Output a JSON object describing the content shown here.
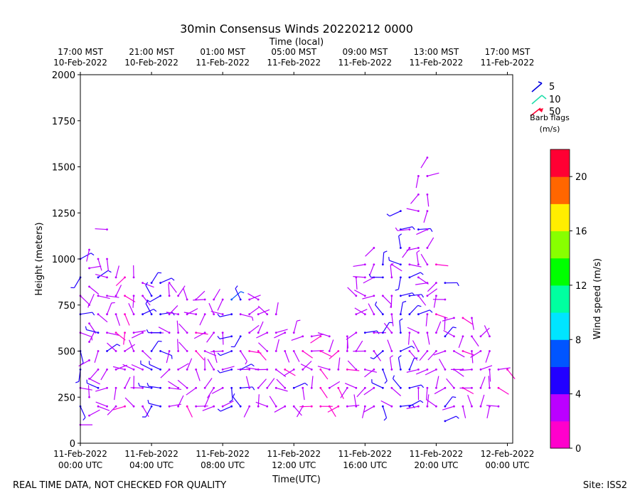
{
  "chart_data": {
    "type": "wind-barb",
    "title": "30min Consensus Winds 20220212 0000",
    "top_axis_label": "Time (local)",
    "top_ticks": [
      {
        "line1": "17:00 MST",
        "line2": "10-Feb-2022"
      },
      {
        "line1": "21:00 MST",
        "line2": "10-Feb-2022"
      },
      {
        "line1": "01:00 MST",
        "line2": "11-Feb-2022"
      },
      {
        "line1": "05:00 MST",
        "line2": "11-Feb-2022"
      },
      {
        "line1": "09:00 MST",
        "line2": "11-Feb-2022"
      },
      {
        "line1": "13:00 MST",
        "line2": "11-Feb-2022"
      },
      {
        "line1": "17:00 MST",
        "line2": "11-Feb-2022"
      }
    ],
    "xlabel": "Time(UTC)",
    "x_ticks": [
      {
        "line1": "11-Feb-2022",
        "line2": "00:00 UTC"
      },
      {
        "line1": "11-Feb-2022",
        "line2": "04:00 UTC"
      },
      {
        "line1": "11-Feb-2022",
        "line2": "08:00 UTC"
      },
      {
        "line1": "11-Feb-2022",
        "line2": "12:00 UTC"
      },
      {
        "line1": "11-Feb-2022",
        "line2": "16:00 UTC"
      },
      {
        "line1": "11-Feb-2022",
        "line2": "20:00 UTC"
      },
      {
        "line1": "12-Feb-2022",
        "line2": "00:00 UTC"
      }
    ],
    "x_tick_hours": [
      0,
      4,
      8,
      12,
      16,
      20,
      24
    ],
    "xlim_hours_utc": [
      0,
      24.3
    ],
    "ylabel": "Height (meters)",
    "ylim": [
      0,
      2000
    ],
    "y_ticks": [
      0,
      250,
      500,
      750,
      1000,
      1250,
      1500,
      1750,
      2000
    ],
    "legend": {
      "position": "top-right",
      "items": [
        {
          "value": "5",
          "color": "#0000dd"
        },
        {
          "value": "10",
          "color": "#22ddaa"
        },
        {
          "value": "50",
          "color": "#ff0033"
        }
      ],
      "title_line1": "Barb flags",
      "title_line2": "(m/s)"
    },
    "colorbar": {
      "label": "Wind speed (m/s)",
      "range": [
        0,
        22
      ],
      "ticks": [
        0,
        4,
        8,
        12,
        16,
        20
      ],
      "colors": [
        "#ff00cc",
        "#bb00ff",
        "#2200ff",
        "#0055ff",
        "#00e5ff",
        "#00ffa0",
        "#00ff00",
        "#88ff00",
        "#ffee00",
        "#ff6600",
        "#ff0033"
      ]
    },
    "barb_columns": [
      {
        "t": 0.0,
        "heights": [
          100,
          200,
          300,
          400,
          500,
          600,
          700,
          800,
          900,
          1000
        ],
        "speed": 4.5
      },
      {
        "t": 0.5,
        "heights": [
          150,
          250,
          350,
          450,
          550,
          650,
          750,
          850,
          950,
          1050
        ],
        "speed": 3.0
      },
      {
        "t": 1.0,
        "heights": [
          200,
          300,
          400,
          500,
          600,
          700,
          800,
          900,
          1000
        ],
        "speed": 4.0
      },
      {
        "t": 1.5,
        "heights": [
          200,
          300,
          400,
          500,
          600,
          700,
          800,
          900,
          1000,
          1160
        ],
        "speed": 3.5
      },
      {
        "t": 2.0,
        "heights": [
          200,
          300,
          400,
          500,
          600,
          700,
          800,
          900
        ],
        "speed": 2.5
      },
      {
        "t": 2.5,
        "heights": [
          200,
          300,
          400,
          500,
          600,
          700,
          800,
          900
        ],
        "speed": 2.0
      },
      {
        "t": 3.0,
        "heights": [
          200,
          300,
          400,
          500,
          600,
          700,
          800,
          900
        ],
        "speed": 2.5
      },
      {
        "t": 3.5,
        "heights": [
          200,
          300,
          400,
          500,
          600,
          700,
          800,
          870
        ],
        "speed": 3.5
      },
      {
        "t": 4.0,
        "heights": [
          200,
          300,
          400,
          500,
          600,
          700,
          800,
          870
        ],
        "speed": 4.5
      },
      {
        "t": 4.5,
        "heights": [
          200,
          300,
          400,
          500,
          600,
          700,
          800,
          870
        ],
        "speed": 5.0
      },
      {
        "t": 5.0,
        "heights": [
          200,
          300,
          400,
          500,
          600,
          700,
          800,
          870
        ],
        "speed": 3.0
      },
      {
        "t": 5.5,
        "heights": [
          200,
          300,
          400,
          500,
          600,
          700,
          800
        ],
        "speed": 2.5
      },
      {
        "t": 6.0,
        "heights": [
          200,
          300,
          400,
          500,
          600,
          700,
          780
        ],
        "speed": 2.0
      },
      {
        "t": 6.5,
        "heights": [
          200,
          300,
          400,
          500,
          600,
          700,
          780
        ],
        "speed": 2.5
      },
      {
        "t": 7.0,
        "heights": [
          200,
          300,
          400,
          500,
          600,
          700,
          780
        ],
        "speed": 3.0
      },
      {
        "t": 7.5,
        "heights": [
          200,
          300,
          400,
          500,
          600,
          700,
          780
        ],
        "speed": 2.5
      },
      {
        "t": 8.0,
        "heights": [
          200,
          300,
          400,
          500,
          600,
          700,
          780
        ],
        "speed": 3.0
      },
      {
        "t": 8.5,
        "heights": [
          200,
          300,
          400,
          500,
          580,
          700,
          780
        ],
        "speed": 5.5
      },
      {
        "t": 9.0,
        "heights": [
          200,
          300,
          400,
          500,
          580,
          700,
          780
        ],
        "speed": 4.5
      },
      {
        "t": 9.5,
        "heights": [
          200,
          300,
          400,
          500,
          600,
          700,
          780
        ],
        "speed": 2.5
      },
      {
        "t": 10.0,
        "heights": [
          200,
          300,
          400,
          500,
          600,
          700,
          780
        ],
        "speed": 2.0
      },
      {
        "t": 10.5,
        "heights": [
          200,
          300,
          400,
          500,
          600,
          700
        ],
        "speed": 2.5
      },
      {
        "t": 11.0,
        "heights": [
          200,
          300,
          400,
          500,
          600,
          700
        ],
        "speed": 3.0
      },
      {
        "t": 11.5,
        "heights": [
          200,
          300,
          400,
          500,
          600
        ],
        "speed": 2.5
      },
      {
        "t": 12.0,
        "heights": [
          200,
          300,
          400,
          500,
          600
        ],
        "speed": 3.5
      },
      {
        "t": 12.5,
        "heights": [
          200,
          300,
          400,
          500,
          580
        ],
        "speed": 2.5
      },
      {
        "t": 13.0,
        "heights": [
          200,
          300,
          400,
          500,
          580
        ],
        "speed": 2.0
      },
      {
        "t": 13.5,
        "heights": [
          200,
          300,
          400,
          500,
          580
        ],
        "speed": 2.0
      },
      {
        "t": 14.0,
        "heights": [
          200,
          300,
          400,
          500,
          580
        ],
        "speed": 2.5
      },
      {
        "t": 14.5,
        "heights": [
          200,
          300,
          400,
          500
        ],
        "speed": 2.0
      },
      {
        "t": 15.0,
        "heights": [
          200,
          300,
          400,
          500,
          580
        ],
        "speed": 2.5
      },
      {
        "t": 15.5,
        "heights": [
          200,
          300,
          400,
          500,
          600,
          700,
          800,
          900
        ],
        "speed": 2.5
      },
      {
        "t": 16.0,
        "heights": [
          200,
          300,
          400,
          500,
          600,
          700,
          800,
          900,
          970
        ],
        "speed": 3.5
      },
      {
        "t": 16.5,
        "heights": [
          200,
          300,
          400,
          500,
          600,
          700,
          800,
          900,
          970,
          1060
        ],
        "speed": 3.0
      },
      {
        "t": 17.0,
        "heights": [
          200,
          300,
          400,
          500,
          600,
          700,
          800,
          900,
          970
        ],
        "speed": 4.5
      },
      {
        "t": 17.5,
        "heights": [
          200,
          300,
          400,
          500,
          600,
          700,
          800,
          900,
          970
        ],
        "speed": 3.5
      },
      {
        "t": 18.0,
        "heights": [
          200,
          300,
          400,
          500,
          600,
          700,
          800,
          900,
          970,
          1060,
          1160,
          1260
        ],
        "speed": 4.5
      },
      {
        "t": 18.5,
        "heights": [
          200,
          300,
          400,
          500,
          600,
          700,
          800,
          900,
          970,
          1060,
          1160
        ],
        "speed": 4.0
      },
      {
        "t": 19.0,
        "heights": [
          200,
          300,
          400,
          500,
          600,
          700,
          800,
          900,
          970,
          1060,
          1160,
          1260,
          1350,
          1450
        ],
        "speed": 3.5
      },
      {
        "t": 19.5,
        "heights": [
          200,
          300,
          400,
          500,
          600,
          700,
          800,
          870,
          970,
          1060,
          1160,
          1260,
          1350,
          1450,
          1550
        ],
        "speed": 3.0
      },
      {
        "t": 20.0,
        "heights": [
          200,
          300,
          400,
          500,
          600,
          700,
          800,
          870,
          970
        ],
        "speed": 2.5
      },
      {
        "t": 20.5,
        "heights": [
          120,
          200,
          300,
          400,
          500,
          580,
          680,
          780,
          870
        ],
        "speed": 3.5
      },
      {
        "t": 21.0,
        "heights": [
          200,
          300,
          400,
          500,
          580,
          680
        ],
        "speed": 3.0
      },
      {
        "t": 21.5,
        "heights": [
          200,
          300,
          400,
          500,
          580,
          680
        ],
        "speed": 2.5
      },
      {
        "t": 22.0,
        "heights": [
          200,
          300,
          400,
          500,
          580,
          680
        ],
        "speed": 3.0
      },
      {
        "t": 22.5,
        "heights": [
          200,
          300,
          400,
          500,
          580
        ],
        "speed": 2.5
      },
      {
        "t": 23.0,
        "heights": [
          200,
          300,
          400,
          500,
          580
        ],
        "speed": 2.5
      },
      {
        "t": 23.5,
        "heights": [
          200,
          300,
          400
        ],
        "speed": 2.0
      },
      {
        "t": 24.0,
        "heights": [
          400
        ],
        "speed": 2.0
      }
    ]
  },
  "footer": {
    "left": "REAL TIME DATA, NOT CHECKED FOR QUALITY",
    "right": "Site: ISS2"
  }
}
